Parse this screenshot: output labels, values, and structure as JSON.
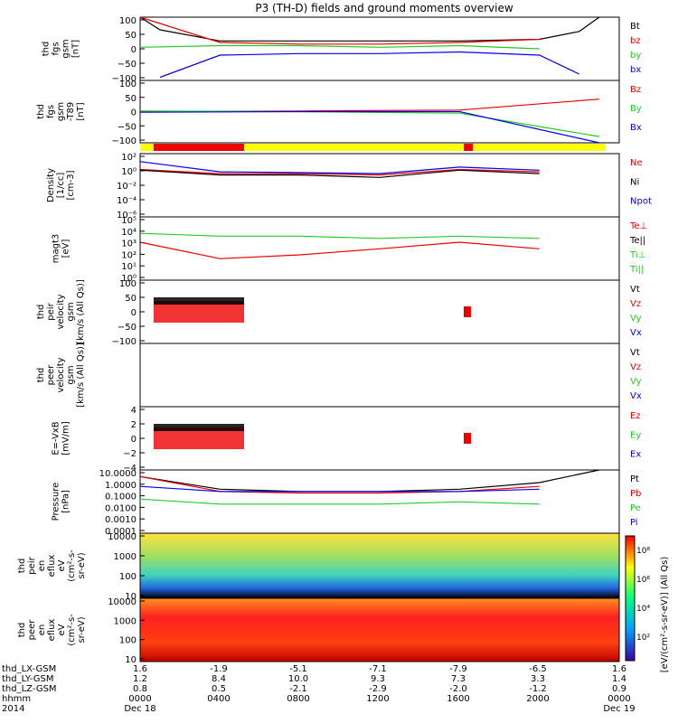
{
  "title": "P3 (TH-D) fields and ground moments overview",
  "colors": {
    "black": "#000000",
    "red": "#ee0000",
    "green": "#22cc22",
    "blue": "#0000ee",
    "yellow": "#ffff00"
  },
  "panels": [
    {
      "id": "fgs",
      "ylabel": [
        "thd",
        "fgs",
        "gsm",
        "[nT]"
      ],
      "ticks": [
        "100",
        "50",
        "0",
        "−50",
        "−100"
      ],
      "legend": [
        {
          "text": "Bt",
          "color": "black"
        },
        {
          "text": "bz",
          "color": "red"
        },
        {
          "text": "by",
          "color": "green"
        },
        {
          "text": "bx",
          "color": "blue"
        }
      ]
    },
    {
      "id": "fgs-dip",
      "ylabel": [
        "thd",
        "fgs",
        "gsm",
        "-T89",
        "[nT]"
      ],
      "ticks": [
        "100",
        "50",
        "0",
        "−50",
        "−100"
      ],
      "legend": [
        {
          "text": "Bz",
          "color": "red"
        },
        {
          "text": "By",
          "color": "green"
        },
        {
          "text": "Bx",
          "color": "blue"
        }
      ]
    },
    {
      "id": "density",
      "ylabel": [
        "Density",
        "[1/cc]",
        "[cm-3]"
      ],
      "ticks": [
        "10²",
        "10⁰",
        "10⁻²",
        "10⁻⁴",
        "10⁻⁶"
      ],
      "legend": [
        {
          "text": "Ne",
          "color": "red"
        },
        {
          "text": "Ni",
          "color": "black"
        },
        {
          "text": "Npot",
          "color": "blue"
        }
      ]
    },
    {
      "id": "temp",
      "ylabel": [
        "magt3",
        "[eV]"
      ],
      "ticks": [
        "10⁵",
        "10⁴",
        "10³",
        "10²",
        "10¹",
        "10⁰"
      ],
      "legend": [
        {
          "text": "Te⊥",
          "color": "red"
        },
        {
          "text": "Te||",
          "color": "black"
        },
        {
          "text": "Ti⊥",
          "color": "green"
        },
        {
          "text": "Ti||",
          "color": "green"
        }
      ]
    },
    {
      "id": "peir-vel",
      "ylabel": [
        "thd",
        "peir",
        "velocity",
        "gsm",
        "[km/s (All Qs)]"
      ],
      "ticks": [
        "100",
        "50",
        "0",
        "−50",
        "−100"
      ],
      "legend": [
        {
          "text": "Vt",
          "color": "black"
        },
        {
          "text": "Vz",
          "color": "red"
        },
        {
          "text": "Vy",
          "color": "green"
        },
        {
          "text": "Vx",
          "color": "blue"
        }
      ]
    },
    {
      "id": "peer-vel",
      "ylabel": [
        "thd",
        "peer",
        "velocity",
        "gsm",
        "[km/s (All Qs)]"
      ],
      "ticks": [],
      "legend": [
        {
          "text": "Vt",
          "color": "black"
        },
        {
          "text": "Vz",
          "color": "red"
        },
        {
          "text": "Vy",
          "color": "green"
        },
        {
          "text": "Vx",
          "color": "blue"
        }
      ]
    },
    {
      "id": "efield",
      "ylabel": [
        "E=-VxB",
        "[mV/m]"
      ],
      "ticks": [
        "4",
        "2",
        "0",
        "−2",
        "−4"
      ],
      "legend": [
        {
          "text": "Ez",
          "color": "red"
        },
        {
          "text": "Ey",
          "color": "green"
        },
        {
          "text": "Ex",
          "color": "blue"
        }
      ]
    },
    {
      "id": "pressure",
      "ylabel": [
        "Pressure",
        "[nPa]"
      ],
      "ticks": [
        "10.0000",
        "1.0000",
        "0.1000",
        "0.0100",
        "0.0010",
        "0.0001"
      ],
      "legend": [
        {
          "text": "Pt",
          "color": "black"
        },
        {
          "text": "Pb",
          "color": "red"
        },
        {
          "text": "Pe",
          "color": "green"
        },
        {
          "text": "Pi",
          "color": "blue"
        }
      ]
    },
    {
      "id": "peir-spec",
      "ylabel": [
        "thd",
        "peir",
        "en",
        "eflux",
        "eV",
        "(cm²-s-",
        "sr-eV)"
      ],
      "ticks": [
        "10000",
        "1000",
        "100",
        "10"
      ]
    },
    {
      "id": "peer-spec",
      "ylabel": [
        "thd",
        "peer",
        "en",
        "eflux",
        "eV",
        "(cm²-s-",
        "sr-eV)"
      ],
      "ticks": [
        "10000",
        "1000",
        "100",
        "10"
      ]
    }
  ],
  "colorbar": {
    "ticks": [
      "10⁸",
      "10⁶",
      "10⁴",
      "10²"
    ],
    "label": "[eV/(cm²-s-sr-eV)] (All Qs)"
  },
  "xaxis": {
    "rows": [
      {
        "label": "thd_LX-GSM",
        "values": [
          "1.6",
          "-1.9",
          "-5.1",
          "-7.1",
          "-7.9",
          "-6.5",
          "1.6"
        ]
      },
      {
        "label": "thd_LY-GSM",
        "values": [
          "1.2",
          "8.4",
          "10.0",
          "9.3",
          "7.3",
          "3.3",
          "1.4"
        ]
      },
      {
        "label": "thd_LZ-GSM",
        "values": [
          "0.8",
          "0.5",
          "-2.1",
          "-2.9",
          "-2.0",
          "-1.2",
          "0.9"
        ]
      },
      {
        "label": "hhmm",
        "values": [
          "0000",
          "0400",
          "0800",
          "1200",
          "1600",
          "2000",
          "0000"
        ]
      },
      {
        "label": "2014",
        "values": [
          "Dec 18",
          "",
          "",
          "",
          "",
          "",
          "Dec 19"
        ]
      }
    ]
  },
  "chart_data": {
    "type": "line",
    "title": "P3 (TH-D) fields and ground moments overview",
    "x": [
      "0000",
      "0400",
      "0800",
      "1200",
      "1600",
      "2000",
      "0000"
    ],
    "xlabel": "hhmm",
    "panels": [
      {
        "name": "thd fgs gsm [nT]",
        "ylim": [
          -100,
          100
        ],
        "series": [
          {
            "name": "Bt",
            "x": [
              "0000",
              "0100",
              "0400",
              "0800",
              "1200",
              "1600",
              "2000",
              "2200",
              "2300"
            ],
            "y": [
              100,
              60,
              25,
              25,
              25,
              25,
              30,
              55,
              100
            ]
          },
          {
            "name": "bz",
            "x": [
              "0000",
              "0400",
              "0800",
              "1200",
              "1600",
              "2000"
            ],
            "y": [
              100,
              20,
              15,
              15,
              20,
              30
            ]
          },
          {
            "name": "by",
            "x": [
              "0000",
              "0400",
              "0800",
              "1200",
              "1600",
              "2000"
            ],
            "y": [
              5,
              10,
              10,
              5,
              10,
              0
            ]
          },
          {
            "name": "bx",
            "x": [
              "0100",
              "0400",
              "0800",
              "1200",
              "1600",
              "2000",
              "2200"
            ],
            "y": [
              -90,
              -20,
              -15,
              -15,
              -10,
              -20,
              -80
            ]
          }
        ]
      },
      {
        "name": "thd fgs gsm -T89 [nT]",
        "ylim": [
          -100,
          100
        ],
        "series": [
          {
            "name": "Bz",
            "x": [
              "0000",
              "0800",
              "1600",
              "2300"
            ],
            "y": [
              0,
              2,
              5,
              40
            ]
          },
          {
            "name": "By",
            "x": [
              "0000",
              "0800",
              "1600",
              "2300"
            ],
            "y": [
              2,
              0,
              -5,
              -80
            ]
          },
          {
            "name": "Bx",
            "x": [
              "0000",
              "0800",
              "1600",
              "2300"
            ],
            "y": [
              -2,
              0,
              0,
              -100
            ]
          }
        ]
      },
      {
        "name": "Density [1/cc]",
        "ylim": [
          "1e-6",
          "1e2"
        ],
        "log": true,
        "series": [
          {
            "name": "Ne",
            "x": [
              "0000",
              "0400",
              "0800",
              "1200",
              "1600",
              "2000"
            ],
            "y": [
              1,
              0.3,
              0.3,
              0.2,
              1,
              0.5
            ]
          },
          {
            "name": "Ni",
            "x": [
              "0000",
              "0400",
              "0800",
              "1200",
              "1600",
              "2000"
            ],
            "y": [
              0.8,
              0.2,
              0.2,
              0.1,
              0.8,
              0.3
            ]
          },
          {
            "name": "Npot",
            "x": [
              "0000",
              "0400",
              "0800",
              "1200",
              "1600",
              "2000"
            ],
            "y": [
              10,
              0.5,
              0.4,
              0.3,
              2,
              0.8
            ]
          }
        ]
      },
      {
        "name": "magt3 [eV]",
        "ylim": [
          "1e0",
          "1e5"
        ],
        "log": true,
        "series": [
          {
            "name": "Te⊥",
            "x": [
              "0000",
              "0400",
              "0800",
              "1200",
              "1600",
              "2000"
            ],
            "y": [
              1000,
              50,
              100,
              300,
              1000,
              300
            ]
          },
          {
            "name": "Ti||",
            "x": [
              "0000",
              "0400",
              "0800",
              "1200",
              "1600",
              "2000"
            ],
            "y": [
              5000,
              3000,
              3000,
              2000,
              3000,
              2000
            ]
          }
        ]
      },
      {
        "name": "thd peir velocity gsm [km/s (All Qs)]",
        "ylim": [
          -100,
          100
        ]
      },
      {
        "name": "E=-VxB [mV/m]",
        "ylim": [
          -4,
          4
        ]
      },
      {
        "name": "Pressure [nPa]",
        "ylim": [
          "1e-4",
          "1e1"
        ],
        "log": true,
        "series": [
          {
            "name": "Pt",
            "x": [
              "0000",
              "0400",
              "0800",
              "1200",
              "1600",
              "2000",
              "2300"
            ],
            "y": [
              3,
              0.3,
              0.2,
              0.2,
              0.3,
              1,
              10
            ]
          },
          {
            "name": "Pb",
            "x": [
              "0000",
              "0400",
              "0800",
              "1200",
              "1600",
              "2000"
            ],
            "y": [
              3,
              0.2,
              0.15,
              0.15,
              0.2,
              0.5
            ]
          },
          {
            "name": "Pe",
            "x": [
              "0000",
              "0400",
              "0800",
              "1200",
              "1600",
              "2000"
            ],
            "y": [
              0.05,
              0.02,
              0.02,
              0.02,
              0.03,
              0.02
            ]
          },
          {
            "name": "Pi",
            "x": [
              "0000",
              "0400",
              "0800",
              "1200",
              "1600",
              "2000"
            ],
            "y": [
              0.5,
              0.2,
              0.2,
              0.2,
              0.2,
              0.3
            ]
          }
        ]
      }
    ]
  }
}
